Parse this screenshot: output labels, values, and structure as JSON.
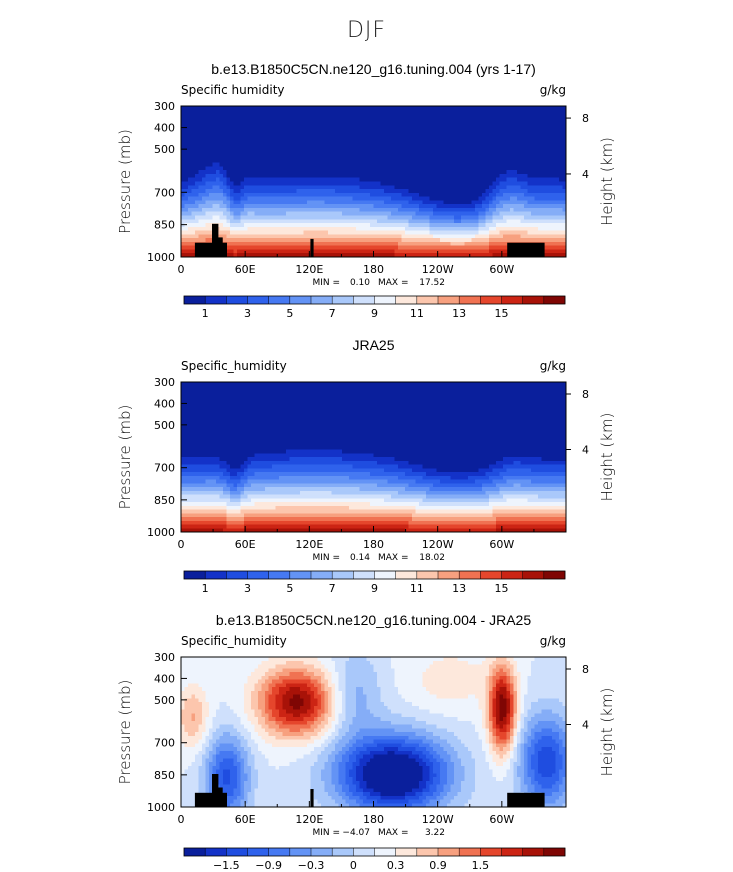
{
  "figure": {
    "title": "DJF"
  },
  "colors": {
    "map": [
      "#0a1f9c",
      "#1332c8",
      "#1f4de0",
      "#2f62ec",
      "#4679f2",
      "#6393f5",
      "#85adf7",
      "#a9c8fa",
      "#cfe0fc",
      "#eef4fd",
      "#fde8dc",
      "#fcc6ad",
      "#f7a07f",
      "#f07252",
      "#e5462c",
      "#cc2414",
      "#a81208",
      "#7f0604"
    ],
    "topo": "#000000"
  },
  "chart_data": [
    {
      "type": "heatmap",
      "title": "b.e13.B1850C5CN.ne120_g16.tuning.004 (yrs 1-17)",
      "left_label": "Specific humidity",
      "right_label": "g/kg",
      "ylabel": "Pressure (mb)",
      "ylabel_right": "Height (km)",
      "xticks": [
        "0",
        "60E",
        "120E",
        "180",
        "120W",
        "60W"
      ],
      "yticks": [
        "300",
        "400",
        "500",
        "700",
        "850",
        "1000"
      ],
      "yticks_right": [
        "8",
        "4"
      ],
      "stats": {
        "min_label": "MIN =",
        "min": "0.10",
        "max_label": "MAX =",
        "max": "17.52"
      },
      "colorbar_labels": [
        "1",
        "3",
        "5",
        "7",
        "9",
        "11",
        "13",
        "15"
      ],
      "field": "model",
      "orography": true
    },
    {
      "type": "heatmap",
      "title": "JRA25",
      "left_label": "Specific_humidity",
      "right_label": "g/kg",
      "ylabel": "Pressure (mb)",
      "ylabel_right": "Height (km)",
      "xticks": [
        "0",
        "60E",
        "120E",
        "180",
        "120W",
        "60W"
      ],
      "yticks": [
        "300",
        "400",
        "500",
        "700",
        "850",
        "1000"
      ],
      "yticks_right": [
        "8",
        "4"
      ],
      "stats": {
        "min_label": "MIN =",
        "min": "0.14",
        "max_label": "MAX =",
        "max": "18.02"
      },
      "colorbar_labels": [
        "1",
        "3",
        "5",
        "7",
        "9",
        "11",
        "13",
        "15"
      ],
      "field": "obs",
      "orography": false
    },
    {
      "type": "heatmap",
      "title": "b.e13.B1850C5CN.ne120_g16.tuning.004 - JRA25",
      "left_label": "Specific_humidity",
      "right_label": "g/kg",
      "ylabel": "Pressure (mb)",
      "ylabel_right": "Height (km)",
      "xticks": [
        "0",
        "60E",
        "120E",
        "180",
        "120W",
        "60W"
      ],
      "yticks": [
        "300",
        "400",
        "500",
        "700",
        "850",
        "1000"
      ],
      "yticks_right": [
        "8",
        "4"
      ],
      "stats": {
        "min_label": "MIN =",
        "min": "−4.07",
        "max_label": "MAX =",
        "max": "3.22"
      },
      "colorbar_labels": [
        "−1.5",
        "−0.9",
        "−0.3",
        "0",
        "0.3",
        "0.9",
        "1.5"
      ],
      "field": "diff",
      "orography": true
    }
  ]
}
